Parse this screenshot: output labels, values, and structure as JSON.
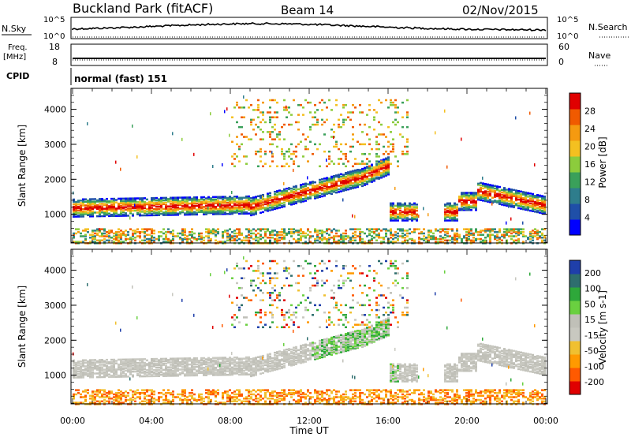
{
  "header": {
    "title": "Buckland Park (fitACF)",
    "beam": "Beam 14",
    "date": "02/Nov/2015"
  },
  "strips": {
    "nsky_label": "N.Sky",
    "nsearch_label": "N.Search",
    "log_hi": "10^5",
    "log_lo": "10^0",
    "freq_label_1": "Freq.",
    "freq_label_2": "[MHz]",
    "freq_hi": "18",
    "freq_lo": "8",
    "nave_label": "Nave",
    "nave_hi": "60",
    "nave_lo": "0",
    "cpid_label": "CPID",
    "cpid_text": "normal (fast) 151"
  },
  "colors": {
    "power_scale": [
      "#0000ff",
      "#1f4fa8",
      "#2e7d8c",
      "#3aa05a",
      "#8ccc3c",
      "#f4c020",
      "#f59a10",
      "#f05a00",
      "#e00000"
    ],
    "velocity_scale": [
      "#e00000",
      "#ff5a00",
      "#ff9a00",
      "#f0c030",
      "#c8c8c0",
      "#c0c0b8",
      "#6ad040",
      "#2ea83a",
      "#2e6e6e",
      "#1f3faa"
    ]
  },
  "chart_data": [
    {
      "type": "heatmap",
      "panel": "power",
      "ylabel": "Slant Range [km]",
      "yticks": [
        1000,
        2000,
        3000,
        4000
      ],
      "xticks": [
        "00:00",
        "04:00",
        "08:00",
        "12:00",
        "16:00",
        "20:00",
        "00:00"
      ],
      "xlabel": "Time UT",
      "colorbar": {
        "label": "Power [dB]",
        "ticks": [
          4,
          8,
          12,
          16,
          20,
          24,
          28
        ]
      }
    },
    {
      "type": "heatmap",
      "panel": "velocity",
      "ylabel": "Slant Range [km]",
      "yticks": [
        1000,
        2000,
        3000,
        4000
      ],
      "xticks": [
        "00:00",
        "04:00",
        "08:00",
        "12:00",
        "16:00",
        "20:00",
        "00:00"
      ],
      "xlabel": "Time UT",
      "colorbar": {
        "label": "Velocity [m s-1]",
        "ticks": [
          200,
          100,
          50,
          15,
          -15,
          -50,
          -100,
          -200
        ]
      }
    }
  ]
}
